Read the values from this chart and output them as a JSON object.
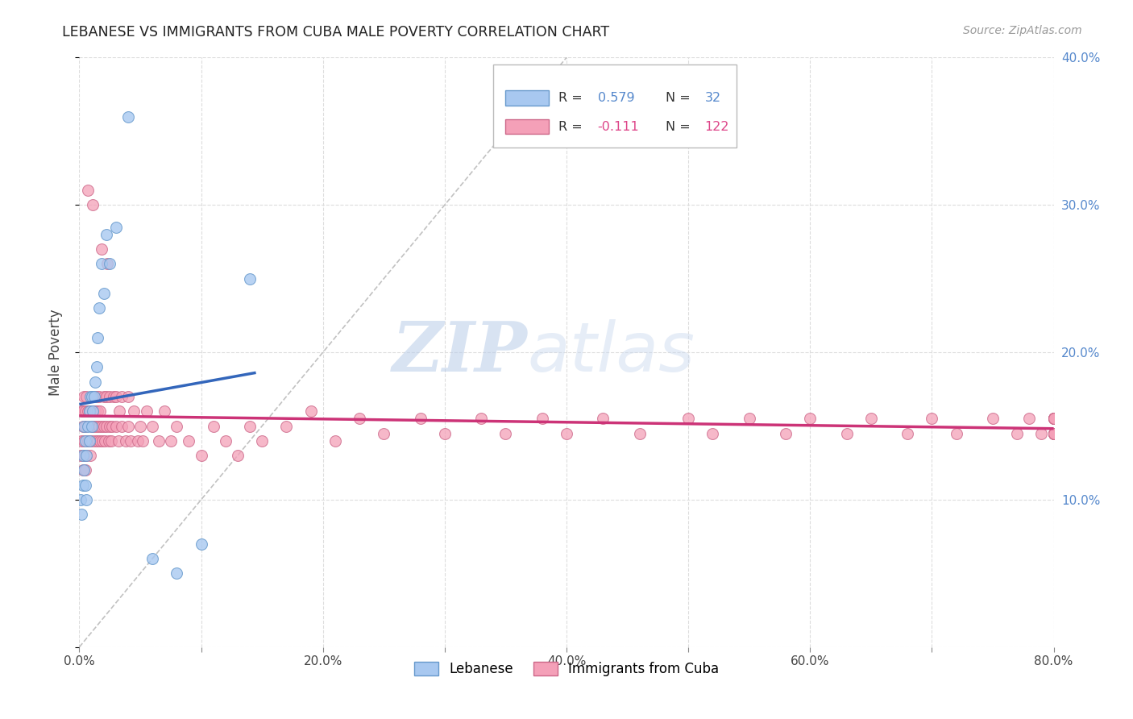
{
  "title": "LEBANESE VS IMMIGRANTS FROM CUBA MALE POVERTY CORRELATION CHART",
  "source": "Source: ZipAtlas.com",
  "ylabel": "Male Poverty",
  "xlim": [
    0,
    0.8
  ],
  "ylim": [
    0,
    0.4
  ],
  "xticks": [
    0.0,
    0.1,
    0.2,
    0.3,
    0.4,
    0.5,
    0.6,
    0.7,
    0.8
  ],
  "yticks": [
    0.0,
    0.1,
    0.2,
    0.3,
    0.4
  ],
  "xtick_labels": [
    "0.0%",
    "",
    "20.0%",
    "",
    "40.0%",
    "",
    "60.0%",
    "",
    "80.0%"
  ],
  "ytick_labels_right": [
    "",
    "10.0%",
    "20.0%",
    "30.0%",
    "40.0%"
  ],
  "legend_label1": "Lebanese",
  "legend_label2": "Immigrants from Cuba",
  "r1": "0.579",
  "n1": "32",
  "r2": "-0.111",
  "n2": "122",
  "color_blue_fill": "#A8C8F0",
  "color_blue_edge": "#6699CC",
  "color_pink_fill": "#F4A0B8",
  "color_pink_edge": "#CC6688",
  "color_blue_text": "#5588CC",
  "color_pink_text": "#DD4488",
  "watermark_zip": "ZIP",
  "watermark_atlas": "atlas",
  "diag_line_color": "#BBBBBB",
  "fit_line_blue": "#3366BB",
  "fit_line_pink": "#CC3377",
  "leb_x": [
    0.001,
    0.002,
    0.003,
    0.003,
    0.004,
    0.004,
    0.005,
    0.005,
    0.006,
    0.006,
    0.007,
    0.008,
    0.008,
    0.009,
    0.01,
    0.01,
    0.011,
    0.012,
    0.013,
    0.014,
    0.015,
    0.016,
    0.018,
    0.02,
    0.022,
    0.025,
    0.03,
    0.04,
    0.06,
    0.08,
    0.1,
    0.14
  ],
  "leb_y": [
    0.1,
    0.09,
    0.11,
    0.13,
    0.12,
    0.15,
    0.11,
    0.14,
    0.1,
    0.13,
    0.15,
    0.16,
    0.14,
    0.17,
    0.15,
    0.17,
    0.16,
    0.17,
    0.18,
    0.19,
    0.21,
    0.23,
    0.26,
    0.24,
    0.28,
    0.26,
    0.285,
    0.36,
    0.06,
    0.05,
    0.07,
    0.25
  ],
  "cuba_x": [
    0.001,
    0.002,
    0.002,
    0.003,
    0.003,
    0.003,
    0.004,
    0.004,
    0.004,
    0.005,
    0.005,
    0.005,
    0.006,
    0.006,
    0.007,
    0.007,
    0.007,
    0.008,
    0.008,
    0.009,
    0.009,
    0.01,
    0.01,
    0.01,
    0.011,
    0.011,
    0.012,
    0.012,
    0.013,
    0.013,
    0.014,
    0.014,
    0.015,
    0.015,
    0.016,
    0.016,
    0.017,
    0.017,
    0.018,
    0.018,
    0.019,
    0.02,
    0.02,
    0.021,
    0.022,
    0.022,
    0.023,
    0.024,
    0.025,
    0.025,
    0.026,
    0.027,
    0.028,
    0.03,
    0.03,
    0.032,
    0.033,
    0.035,
    0.035,
    0.038,
    0.04,
    0.04,
    0.042,
    0.045,
    0.048,
    0.05,
    0.052,
    0.055,
    0.06,
    0.065,
    0.07,
    0.075,
    0.08,
    0.09,
    0.1,
    0.11,
    0.12,
    0.13,
    0.14,
    0.15,
    0.17,
    0.19,
    0.21,
    0.23,
    0.25,
    0.28,
    0.3,
    0.33,
    0.35,
    0.38,
    0.4,
    0.43,
    0.46,
    0.5,
    0.52,
    0.55,
    0.58,
    0.6,
    0.63,
    0.65,
    0.68,
    0.7,
    0.72,
    0.75,
    0.77,
    0.78,
    0.79,
    0.8,
    0.8,
    0.8,
    0.8,
    0.8,
    0.8,
    0.8,
    0.8,
    0.8,
    0.8,
    0.8,
    0.8,
    0.8,
    0.8,
    0.8
  ],
  "cuba_y": [
    0.13,
    0.14,
    0.16,
    0.12,
    0.15,
    0.16,
    0.13,
    0.14,
    0.17,
    0.12,
    0.15,
    0.16,
    0.13,
    0.17,
    0.14,
    0.16,
    0.31,
    0.14,
    0.16,
    0.13,
    0.16,
    0.15,
    0.17,
    0.14,
    0.16,
    0.3,
    0.15,
    0.17,
    0.14,
    0.16,
    0.15,
    0.17,
    0.14,
    0.16,
    0.15,
    0.17,
    0.14,
    0.16,
    0.15,
    0.27,
    0.14,
    0.15,
    0.17,
    0.14,
    0.15,
    0.17,
    0.26,
    0.14,
    0.15,
    0.17,
    0.14,
    0.15,
    0.17,
    0.15,
    0.17,
    0.14,
    0.16,
    0.15,
    0.17,
    0.14,
    0.15,
    0.17,
    0.14,
    0.16,
    0.14,
    0.15,
    0.14,
    0.16,
    0.15,
    0.14,
    0.16,
    0.14,
    0.15,
    0.14,
    0.13,
    0.15,
    0.14,
    0.13,
    0.15,
    0.14,
    0.15,
    0.16,
    0.14,
    0.155,
    0.145,
    0.155,
    0.145,
    0.155,
    0.145,
    0.155,
    0.145,
    0.155,
    0.145,
    0.155,
    0.145,
    0.155,
    0.145,
    0.155,
    0.145,
    0.155,
    0.145,
    0.155,
    0.145,
    0.155,
    0.145,
    0.155,
    0.145,
    0.155,
    0.145,
    0.155,
    0.145,
    0.155,
    0.145,
    0.155,
    0.145,
    0.155,
    0.145,
    0.155,
    0.145,
    0.155,
    0.145,
    0.155
  ]
}
